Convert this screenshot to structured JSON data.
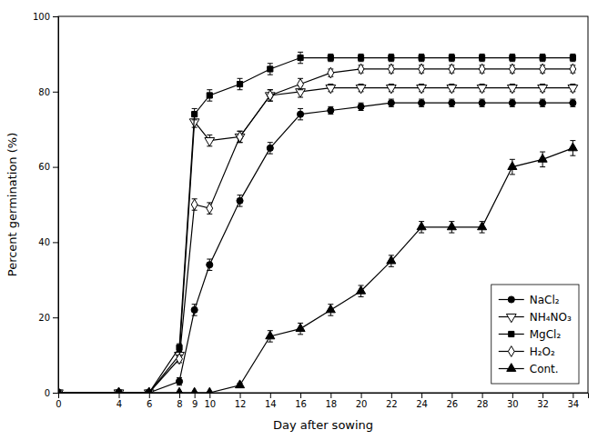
{
  "chart_data": {
    "type": "line",
    "xlabel": "Day after sowing",
    "ylabel": "Percent germination (%)",
    "xlim": [
      0,
      35
    ],
    "ylim": [
      0,
      100
    ],
    "xticks": [
      0,
      4,
      6,
      8,
      9,
      10,
      12,
      14,
      16,
      18,
      20,
      22,
      24,
      26,
      28,
      30,
      32,
      34
    ],
    "yticks": [
      0,
      20,
      40,
      60,
      80,
      100
    ],
    "grid": false,
    "legend": "lower right",
    "x": [
      0,
      4,
      6,
      8,
      9,
      10,
      12,
      14,
      16,
      18,
      20,
      22,
      24,
      26,
      28,
      30,
      32,
      34
    ],
    "series": [
      {
        "name": "NaCl₂",
        "color": "#000000",
        "marker": "circle",
        "line_style": "solid",
        "values": [
          0,
          0,
          0,
          3,
          22,
          34,
          51,
          65,
          74,
          75,
          76,
          77,
          77,
          77,
          77,
          77,
          77,
          77
        ],
        "errors": [
          0,
          0,
          0,
          1,
          1.5,
          1.5,
          1.5,
          1.5,
          1.5,
          1.0,
          1.0,
          1.0,
          1.0,
          1.0,
          1.0,
          1.0,
          1.0,
          1.0
        ]
      },
      {
        "name": "NH₄NO₃",
        "color": "#000000",
        "marker": "triangle-down-open",
        "line_style": "solid",
        "values": [
          0,
          0,
          0,
          10,
          72,
          67,
          68,
          79,
          80,
          81,
          81,
          81,
          81,
          81,
          81,
          81,
          81,
          81
        ],
        "errors": [
          0,
          0,
          0,
          1,
          1.5,
          1.5,
          1.5,
          1.5,
          1.5,
          1.0,
          1.0,
          1.0,
          1.0,
          1.0,
          1.0,
          1.0,
          1.0,
          1.0
        ]
      },
      {
        "name": "MgCl₂",
        "color": "#000000",
        "marker": "square",
        "line_style": "solid",
        "values": [
          0,
          0,
          0,
          12,
          74,
          79,
          82,
          86,
          89,
          89,
          89,
          89,
          89,
          89,
          89,
          89,
          89,
          89
        ],
        "errors": [
          0,
          0,
          0,
          1,
          1.5,
          1.5,
          1.5,
          1.5,
          1.5,
          1.0,
          1.0,
          1.0,
          1.0,
          1.0,
          1.0,
          1.0,
          1.0,
          1.0
        ]
      },
      {
        "name": "H₂O₂",
        "color": "#000000",
        "marker": "diamond-open",
        "line_style": "solid",
        "values": [
          0,
          0,
          0,
          9,
          50,
          49,
          68,
          79,
          82,
          85,
          86,
          86,
          86,
          86,
          86,
          86,
          86,
          86
        ],
        "errors": [
          0,
          0,
          0,
          1,
          1.5,
          1.5,
          1.5,
          1.5,
          1.5,
          1.0,
          1.0,
          1.0,
          1.0,
          1.0,
          1.0,
          1.0,
          1.0,
          1.0
        ]
      },
      {
        "name": "Cont.",
        "color": "#000000",
        "marker": "triangle-up",
        "line_style": "solid",
        "values": [
          0,
          0,
          0,
          0,
          0,
          0,
          2,
          15,
          17,
          22,
          27,
          35,
          44,
          44,
          44,
          60,
          62,
          65
        ],
        "errors": [
          0,
          0,
          0,
          0,
          0,
          0,
          0.5,
          1.5,
          1.5,
          1.5,
          1.5,
          1.5,
          1.5,
          1.5,
          1.5,
          2.0,
          2.0,
          2.0
        ]
      }
    ]
  }
}
